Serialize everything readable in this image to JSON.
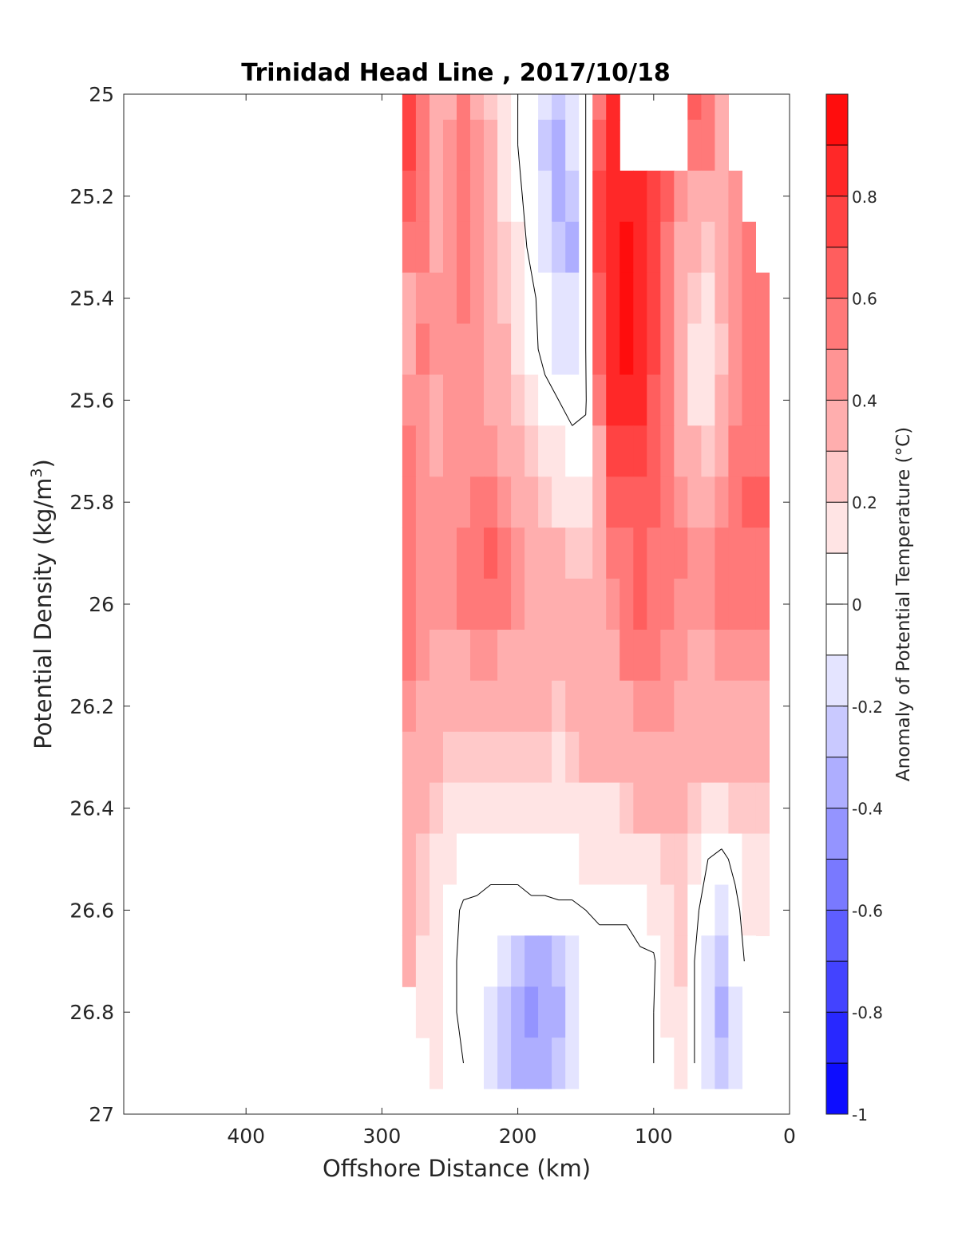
{
  "chart_data": {
    "type": "heatmap",
    "subtype": "filled-contour",
    "title": "Trinidad Head Line , 2017/10/18",
    "xlabel": "Offshore Distance (km)",
    "ylabel_main": "Potential Density (kg/m",
    "ylabel_sup": "3",
    "ylabel_close": ")",
    "xlim": [
      490,
      0
    ],
    "x_reversed": true,
    "ylim": [
      25,
      27
    ],
    "y_reversed": true,
    "x_ticks": [
      400,
      300,
      200,
      100,
      0
    ],
    "y_ticks": [
      25,
      25.2,
      25.4,
      25.6,
      25.8,
      26,
      26.2,
      26.4,
      26.6,
      26.8,
      27
    ],
    "y_tick_labels": [
      "25",
      "25.2",
      "25.4",
      "25.6",
      "25.8",
      "26",
      "26.2",
      "26.4",
      "26.6",
      "26.8",
      "27"
    ],
    "colorbar": {
      "label": "Anomaly of Potential Temperature (°C)",
      "range": [
        -1,
        1
      ],
      "ticks": [
        -1,
        -0.8,
        -0.6,
        -0.4,
        -0.2,
        0,
        0.2,
        0.4,
        0.6,
        0.8
      ],
      "tick_labels": [
        "-1",
        "-0.8",
        "-0.6",
        "-0.4",
        "-0.2",
        "0",
        "0.2",
        "0.4",
        "0.6",
        "0.8"
      ],
      "levels": 20,
      "colormap": "blue-white-red",
      "negative_color": "#0000ff",
      "positive_color": "#ff0000",
      "neutral_color": "#ffffff"
    },
    "zero_contour_shown": true,
    "station_x": [
      280,
      270,
      260,
      250,
      240,
      230,
      220,
      210,
      200,
      190,
      180,
      170,
      160,
      150,
      140,
      130,
      120,
      110,
      100,
      90,
      80,
      70,
      60,
      50,
      40,
      30,
      20
    ],
    "density_y": [
      25.0,
      25.1,
      25.2,
      25.3,
      25.4,
      25.5,
      25.6,
      25.7,
      25.8,
      25.9,
      26.0,
      26.1,
      26.2,
      26.3,
      26.4,
      26.5,
      26.6,
      26.7,
      26.8,
      26.9
    ],
    "anomaly": [
      [
        0.7,
        0.5,
        0.35,
        0.4,
        0.5,
        0.4,
        0.25,
        0.15,
        0.0,
        -0.1,
        -0.2,
        -0.25,
        -0.15,
        0.0,
        0.55,
        0.85,
        null,
        null,
        null,
        null,
        null,
        0.6,
        0.5,
        0.4,
        null,
        null,
        null
      ],
      [
        0.75,
        0.55,
        0.4,
        0.45,
        0.5,
        0.45,
        0.3,
        0.15,
        0.0,
        -0.1,
        -0.25,
        -0.3,
        -0.2,
        0.0,
        0.6,
        0.85,
        null,
        null,
        null,
        null,
        null,
        0.5,
        0.5,
        0.4,
        null,
        null,
        null
      ],
      [
        0.65,
        0.5,
        0.4,
        0.45,
        0.55,
        0.45,
        0.3,
        0.2,
        0.05,
        -0.1,
        -0.2,
        -0.3,
        -0.25,
        0.0,
        0.7,
        0.9,
        0.9,
        0.85,
        0.75,
        0.6,
        0.45,
        0.4,
        0.35,
        0.4,
        0.45,
        null,
        null
      ],
      [
        0.55,
        0.5,
        0.4,
        0.45,
        0.55,
        0.45,
        0.35,
        0.25,
        0.1,
        -0.05,
        -0.15,
        -0.25,
        -0.3,
        0.0,
        0.7,
        0.9,
        0.95,
        0.85,
        0.7,
        0.55,
        0.4,
        0.3,
        0.25,
        0.35,
        0.45,
        0.5,
        null
      ],
      [
        0.35,
        0.45,
        0.45,
        0.45,
        0.5,
        0.45,
        0.35,
        0.25,
        0.15,
        0.05,
        -0.1,
        -0.2,
        -0.2,
        0.0,
        0.65,
        0.9,
        0.95,
        0.85,
        0.7,
        0.55,
        0.35,
        0.25,
        0.15,
        0.3,
        0.45,
        0.55,
        0.55
      ],
      [
        0.35,
        0.5,
        0.45,
        0.45,
        0.45,
        0.45,
        0.35,
        0.3,
        0.2,
        0.05,
        -0.05,
        -0.15,
        -0.15,
        0.0,
        0.6,
        0.85,
        0.95,
        0.85,
        0.7,
        0.5,
        0.3,
        0.15,
        0.1,
        0.25,
        0.45,
        0.55,
        0.55
      ],
      [
        0.45,
        0.45,
        0.4,
        0.45,
        0.45,
        0.45,
        0.4,
        0.35,
        0.25,
        0.15,
        0.05,
        0.0,
        -0.05,
        -0.02,
        0.5,
        0.8,
        0.85,
        0.8,
        0.65,
        0.5,
        0.35,
        0.2,
        0.15,
        0.3,
        0.45,
        0.55,
        0.55
      ],
      [
        0.5,
        0.45,
        0.4,
        0.45,
        0.45,
        0.45,
        0.45,
        0.4,
        0.3,
        0.25,
        0.15,
        0.1,
        0.05,
        0.05,
        0.4,
        0.7,
        0.75,
        0.75,
        0.6,
        0.5,
        0.4,
        0.3,
        0.25,
        0.35,
        0.5,
        0.55,
        0.55
      ],
      [
        0.5,
        0.45,
        0.45,
        0.45,
        0.45,
        0.5,
        0.5,
        0.45,
        0.4,
        0.35,
        0.25,
        0.2,
        0.15,
        0.15,
        0.35,
        0.6,
        0.65,
        0.65,
        0.6,
        0.5,
        0.45,
        0.4,
        0.4,
        0.45,
        0.5,
        0.6,
        0.6
      ],
      [
        0.5,
        0.45,
        0.45,
        0.45,
        0.5,
        0.55,
        0.6,
        0.55,
        0.45,
        0.4,
        0.35,
        0.3,
        0.25,
        0.25,
        0.35,
        0.5,
        0.55,
        0.6,
        0.55,
        0.5,
        0.5,
        0.45,
        0.45,
        0.5,
        0.5,
        0.55,
        0.55
      ],
      [
        0.5,
        0.45,
        0.45,
        0.45,
        0.5,
        0.5,
        0.55,
        0.5,
        0.45,
        0.4,
        0.35,
        0.35,
        0.3,
        0.3,
        0.35,
        0.45,
        0.55,
        0.6,
        0.55,
        0.5,
        0.45,
        0.45,
        0.45,
        0.5,
        0.5,
        0.5,
        0.5
      ],
      [
        0.5,
        0.45,
        0.4,
        0.4,
        0.4,
        0.45,
        0.45,
        0.4,
        0.35,
        0.35,
        0.35,
        0.35,
        0.35,
        0.35,
        0.35,
        0.4,
        0.5,
        0.55,
        0.5,
        0.45,
        0.45,
        0.4,
        0.4,
        0.45,
        0.45,
        0.45,
        0.45
      ],
      [
        0.45,
        0.4,
        0.35,
        0.35,
        0.35,
        0.35,
        0.35,
        0.3,
        0.3,
        0.3,
        0.3,
        0.25,
        0.3,
        0.35,
        0.35,
        0.35,
        0.4,
        0.45,
        0.45,
        0.45,
        0.4,
        0.35,
        0.35,
        0.35,
        0.35,
        0.35,
        0.35
      ],
      [
        0.4,
        0.35,
        0.3,
        0.25,
        0.25,
        0.25,
        0.25,
        0.25,
        0.25,
        0.25,
        0.25,
        0.2,
        0.25,
        0.3,
        0.3,
        0.3,
        0.35,
        0.4,
        0.4,
        0.4,
        0.35,
        0.35,
        0.3,
        0.3,
        0.3,
        0.3,
        0.3
      ],
      [
        0.35,
        0.3,
        0.25,
        0.2,
        0.15,
        0.15,
        0.15,
        0.15,
        0.15,
        0.15,
        0.15,
        0.15,
        0.15,
        0.2,
        0.2,
        0.2,
        0.25,
        0.3,
        0.3,
        0.3,
        0.3,
        0.25,
        0.2,
        0.2,
        0.25,
        0.25,
        0.25
      ],
      [
        0.3,
        0.25,
        0.2,
        0.12,
        0.08,
        0.05,
        0.05,
        0.05,
        0.05,
        0.05,
        0.05,
        0.08,
        0.08,
        0.1,
        0.1,
        0.1,
        0.15,
        0.2,
        0.2,
        0.25,
        0.25,
        0.1,
        0.0,
        -0.05,
        0.05,
        0.2,
        0.2
      ],
      [
        0.3,
        0.25,
        0.15,
        0.05,
        -0.02,
        -0.02,
        -0.05,
        -0.05,
        -0.05,
        -0.02,
        -0.02,
        -0.02,
        -0.02,
        0.0,
        0.02,
        0.02,
        0.02,
        0.05,
        0.1,
        0.2,
        0.25,
        0.05,
        -0.1,
        -0.15,
        -0.05,
        0.1,
        0.1
      ],
      [
        0.3,
        0.2,
        0.1,
        0.02,
        -0.02,
        -0.05,
        -0.1,
        -0.2,
        -0.25,
        -0.3,
        -0.3,
        -0.25,
        -0.2,
        -0.1,
        -0.05,
        -0.05,
        -0.05,
        -0.02,
        -0.02,
        0.15,
        0.25,
        0.0,
        -0.15,
        -0.25,
        -0.1,
        0.05,
        null
      ],
      [
        null,
        0.2,
        0.1,
        0.02,
        -0.02,
        -0.05,
        -0.15,
        -0.25,
        -0.35,
        -0.4,
        -0.35,
        -0.3,
        -0.2,
        -0.1,
        -0.05,
        -0.05,
        -0.05,
        -0.02,
        0.0,
        0.1,
        0.2,
        0.0,
        -0.2,
        -0.3,
        -0.15,
        null,
        null
      ],
      [
        null,
        null,
        0.15,
        0.05,
        0.0,
        -0.05,
        -0.15,
        -0.25,
        -0.3,
        -0.35,
        -0.3,
        -0.25,
        -0.15,
        -0.1,
        -0.05,
        -0.05,
        -0.05,
        -0.02,
        0.0,
        0.05,
        0.15,
        0.0,
        -0.2,
        -0.25,
        -0.15,
        null,
        null
      ]
    ]
  }
}
